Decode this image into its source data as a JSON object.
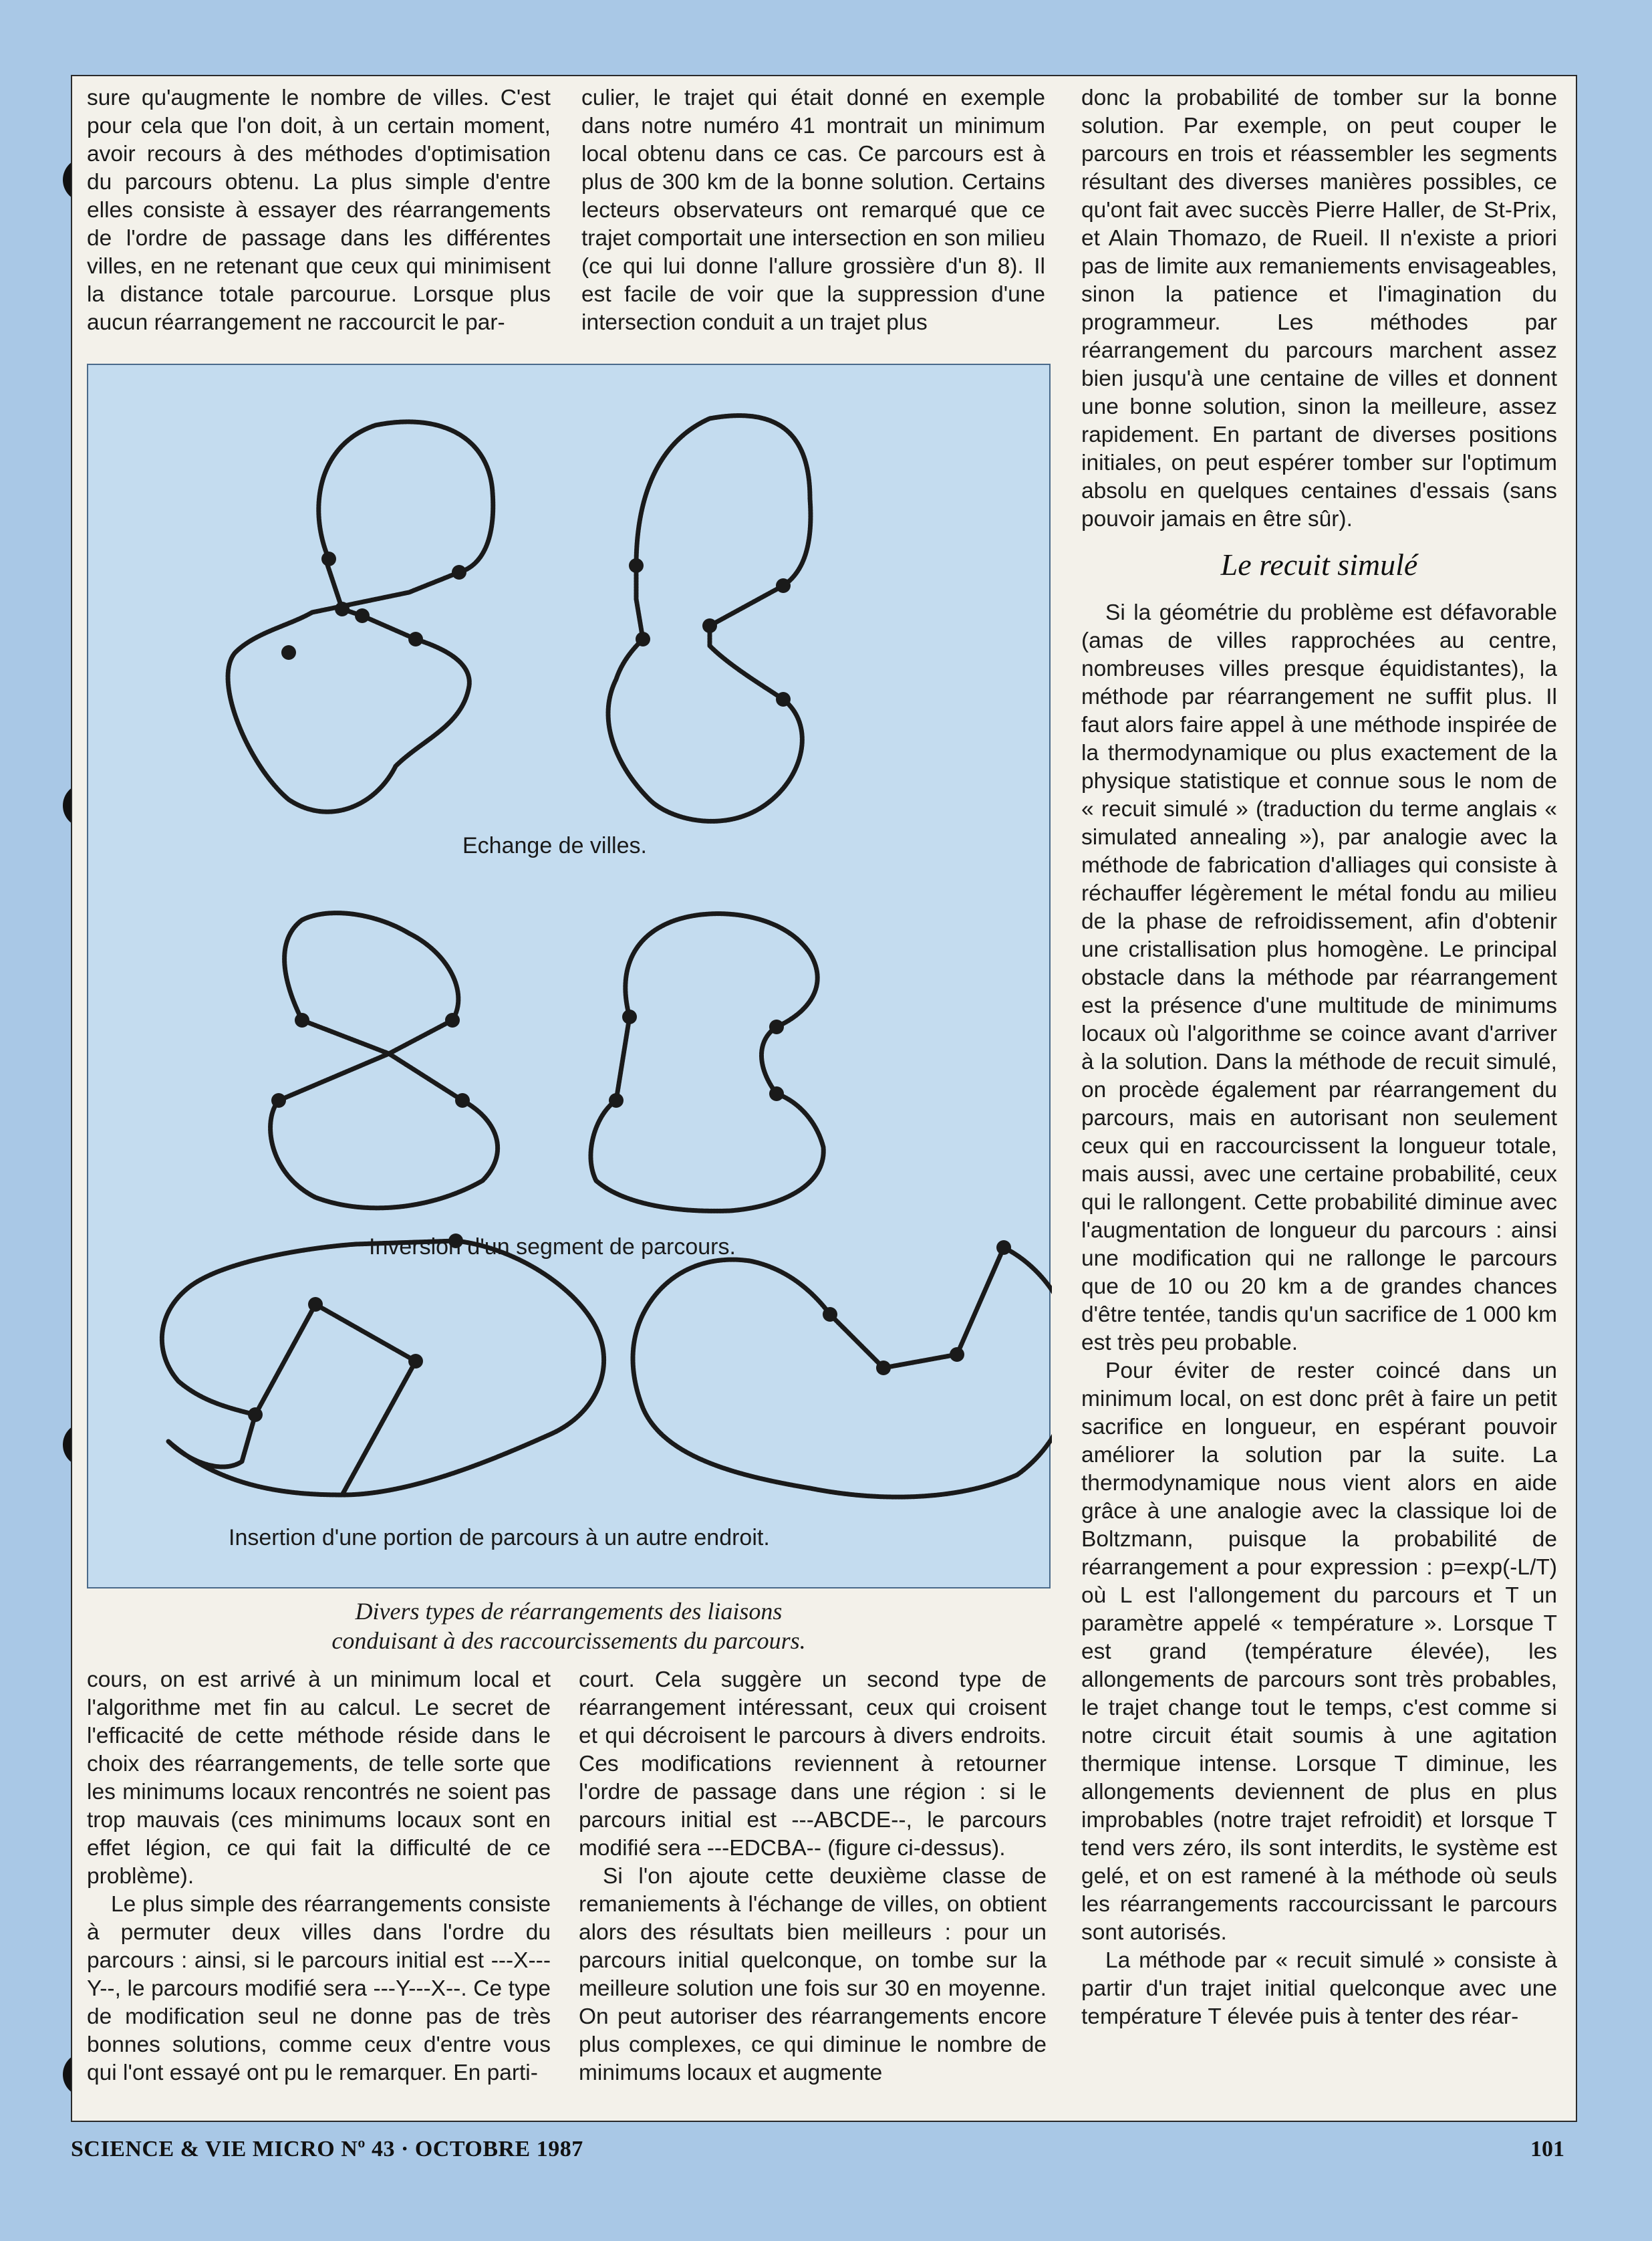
{
  "column1_top": [
    "sure qu'augmente le nombre de villes. C'est pour cela que l'on doit, à un certain moment, avoir recours à des méthodes d'optimisation du parcours obtenu. La plus simple d'entre elles consiste à essayer des réarrangements de l'ordre de passage dans les différentes villes, en ne retenant que ceux qui minimisent la distance totale parcourue. Lorsque plus aucun réarrangement ne raccourcit le par-"
  ],
  "column2_top": [
    "culier, le trajet qui était donné en exemple dans notre numéro 41 montrait un minimum local obtenu dans ce cas. Ce parcours est à plus de 300 km de la bonne solution. Certains lecteurs observateurs ont remarqué que ce trajet comportait une intersection en son milieu (ce qui lui donne l'allure grossière d'un 8). Il est facile de voir que la suppression d'une intersection conduit a un trajet plus"
  ],
  "column3": {
    "para1": "donc la probabilité de tomber sur la bonne solution. Par exemple, on peut couper le parcours en trois et réassembler les segments résultant des diverses manières possibles, ce qu'ont fait avec succès Pierre Haller, de St-Prix, et Alain Thomazo, de Rueil. Il n'existe a priori pas de limite aux remaniements envisageables, sinon la patience et l'imagination du programmeur. Les méthodes par réarrangement du parcours marchent assez bien jusqu'à une centaine de villes et donnent une bonne solution, sinon la meilleure, assez rapidement. En partant de diverses positions initiales, on peut espérer tomber sur l'optimum absolu en quelques centaines d'essais (sans pouvoir jamais en être sûr).",
    "heading": "Le recuit simulé",
    "para2": "Si la géométrie du problème est défavorable (amas de villes rapprochées au centre, nombreuses villes presque équidistantes), la méthode par réarrangement ne suffit plus. Il faut alors faire appel à une méthode inspirée de la thermodynamique ou plus exactement de la physique statistique et connue sous le nom de « recuit simulé » (traduction du terme anglais « simulated annealing »), par analogie avec la méthode de fabrication d'alliages qui consiste à réchauffer légèrement le métal fondu au milieu de la phase de refroidissement, afin d'obtenir une cristallisation plus homogène. Le principal obstacle dans la méthode par réarrangement est la présence d'une multitude de minimums locaux où l'algorithme se coince avant d'arriver à la solution. Dans la méthode de recuit simulé, on procède également par réarrangement du parcours, mais en autorisant non seulement ceux qui en raccourcissent la longueur totale, mais aussi, avec une certaine probabilité, ceux qui le rallongent. Cette probabilité diminue avec l'augmentation de longueur du parcours : ainsi une modification qui ne rallonge le parcours que de 10 ou 20 km a de grandes chances d'être tentée, tandis qu'un sacrifice de 1 000 km est très peu probable.",
    "para3": "Pour éviter de rester coincé dans un minimum local, on est donc prêt à faire un petit sacrifice en longueur, en espérant pouvoir améliorer la solution par la suite. La thermodynamique nous vient alors en aide grâce à une analogie avec la classique loi de Boltzmann, puisque la probabilité de réarrangement a pour expression : p=exp(-L/T) où L est l'allongement du parcours et T un paramètre appelé « température ». Lorsque T est grand (température élevée), les allongements de parcours sont très probables, le trajet change tout le temps, c'est comme si notre circuit était soumis à une agitation thermique intense. Lorsque T diminue, les allongements deviennent de plus en plus improbables (notre trajet refroidit) et lorsque T tend vers zéro, ils sont interdits, le système est gelé, et on est ramené à la méthode où seuls les réarrangements raccourcissant le parcours sont autorisés.",
    "para4": "La méthode par « recuit simulé » consiste à partir d'un trajet initial quelconque avec une température T élevée puis à tenter des réar-"
  },
  "figure": {
    "label1": "Echange de villes.",
    "label2": "Inversion d'un segment de parcours.",
    "label3": "Insertion d'une portion de parcours à un autre endroit.",
    "caption_line1": "Divers types de réarrangements des liaisons",
    "caption_line2": "conduisant à des raccourcissements du parcours."
  },
  "column1_bottom": {
    "para1": "cours, on est arrivé à un minimum local et l'algorithme met fin au calcul. Le secret de l'efficacité de cette méthode réside dans le choix des réarrangements, de telle sorte que les minimums locaux rencontrés ne soient pas trop mauvais (ces minimums locaux sont en effet légion, ce qui fait la difficulté de ce problème).",
    "para2": "Le plus simple des réarrangements consiste à permuter deux villes dans l'ordre du parcours : ainsi, si le parcours initial est ---X---Y--, le parcours modifié sera ---Y---X--. Ce type de modification seul ne donne pas de très bonnes solutions, comme ceux d'entre vous qui l'ont essayé ont pu le remarquer. En parti-"
  },
  "column2_bottom": {
    "para1": "court. Cela suggère un second type de réarrangement intéressant, ceux qui croisent et qui décroisent le parcours à divers endroits. Ces modifications reviennent à retourner l'ordre de passage dans une région : si le parcours initial est ---ABCDE--, le parcours modifié sera ---EDCBA-- (figure ci-dessus).",
    "para2": "Si l'on ajoute cette deuxième classe de remaniements à l'échange de villes, on obtient alors des résultats bien meilleurs : pour un parcours initial quelconque, on tombe sur la meilleure solution une fois sur 30 en moyenne. On peut autoriser des réarrangements encore plus complexes, ce qui diminue le nombre de minimums locaux et augmente"
  },
  "footer": {
    "left": "SCIENCE & VIE MICRO Nº 43 · OCTOBRE 1987",
    "right": "101"
  }
}
